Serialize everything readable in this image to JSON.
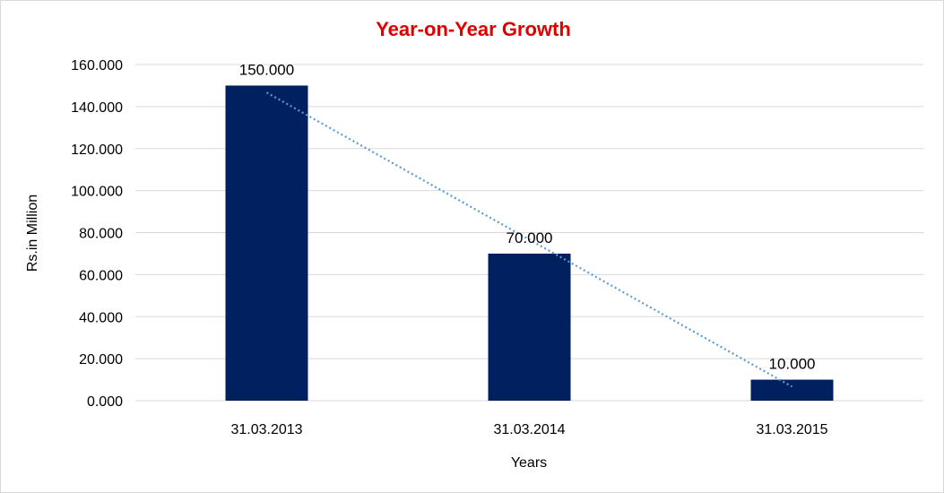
{
  "chart_data": {
    "type": "bar",
    "title": "Year-on-Year Growth",
    "xlabel": "Years",
    "ylabel": "Rs.in Million",
    "categories": [
      "31.03.2013",
      "31.03.2014",
      "31.03.2015"
    ],
    "values": [
      150,
      70,
      10
    ],
    "value_labels": [
      "150.000",
      "70.000",
      "10.000"
    ],
    "y_ticks": [
      0,
      20,
      40,
      60,
      80,
      100,
      120,
      140,
      160
    ],
    "y_tick_labels": [
      "0.000",
      "20.000",
      "40.000",
      "60.000",
      "80.000",
      "100.000",
      "120.000",
      "140.000",
      "160.000"
    ],
    "ylim": [
      0,
      160
    ],
    "grid": true,
    "legend": "none",
    "trendline": "linear",
    "colors": {
      "bar": "#002060",
      "trendline": "#5b9bd5",
      "title": "#e00000",
      "grid": "#d9d9d9"
    }
  }
}
